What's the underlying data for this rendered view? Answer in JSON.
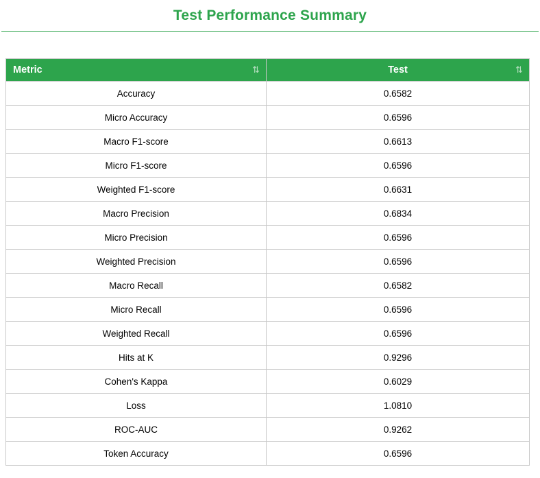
{
  "page": {
    "title": "Test Performance Summary",
    "accent_color": "#2da44c"
  },
  "table": {
    "columns": [
      {
        "label": "Metric",
        "sort_icon": "⇅"
      },
      {
        "label": "Test",
        "sort_icon": "⇅"
      }
    ],
    "rows": [
      {
        "metric": "Accuracy",
        "value": "0.6582"
      },
      {
        "metric": "Micro Accuracy",
        "value": "0.6596"
      },
      {
        "metric": "Macro F1-score",
        "value": "0.6613"
      },
      {
        "metric": "Micro F1-score",
        "value": "0.6596"
      },
      {
        "metric": "Weighted F1-score",
        "value": "0.6631"
      },
      {
        "metric": "Macro Precision",
        "value": "0.6834"
      },
      {
        "metric": "Micro Precision",
        "value": "0.6596"
      },
      {
        "metric": "Weighted Precision",
        "value": "0.6596"
      },
      {
        "metric": "Macro Recall",
        "value": "0.6582"
      },
      {
        "metric": "Micro Recall",
        "value": "0.6596"
      },
      {
        "metric": "Weighted Recall",
        "value": "0.6596"
      },
      {
        "metric": "Hits at K",
        "value": "0.9296"
      },
      {
        "metric": "Cohen's Kappa",
        "value": "0.6029"
      },
      {
        "metric": "Loss",
        "value": "1.0810"
      },
      {
        "metric": "ROC-AUC",
        "value": "0.9262"
      },
      {
        "metric": "Token Accuracy",
        "value": "0.6596"
      }
    ]
  }
}
